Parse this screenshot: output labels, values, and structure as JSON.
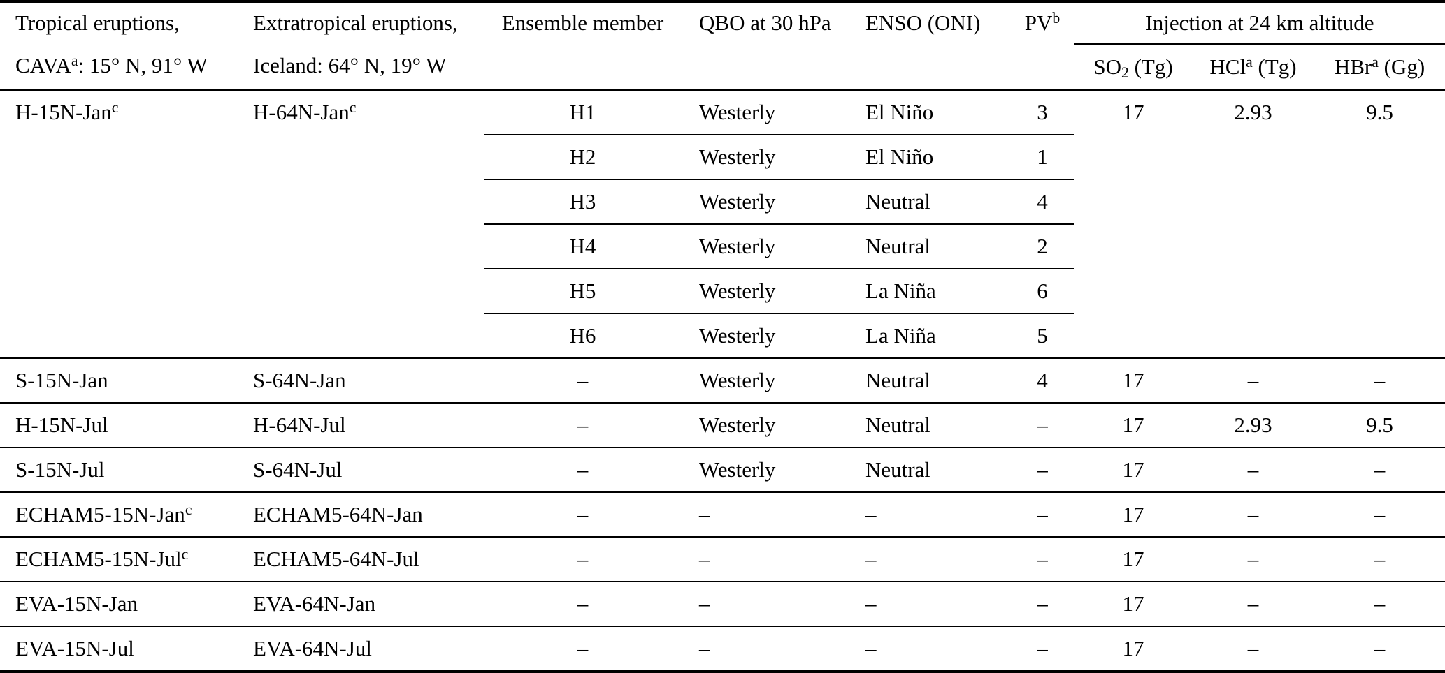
{
  "header": {
    "tropical_line1": "Tropical eruptions,",
    "tropical_line2_pre": "CAVA",
    "tropical_line2_sup": "a",
    "tropical_line2_post": ": 15° N, 91° W",
    "extratropical_line1": "Extratropical eruptions,",
    "extratropical_line2": "Iceland: 64° N, 19° W",
    "ensemble_member": "Ensemble member",
    "qbo": "QBO at 30 hPa",
    "enso": "ENSO (ONI)",
    "pv_pre": "PV",
    "pv_sup": "b",
    "injection_group": "Injection at 24 km altitude",
    "so2_pre": "SO",
    "so2_sub": "2",
    "so2_post": " (Tg)",
    "hcl_pre": "HCl",
    "hcl_sup": "a",
    "hcl_post": " (Tg)",
    "hbr_pre": "HBr",
    "hbr_sup": "a",
    "hbr_post": " (Gg)"
  },
  "group": {
    "tropical": "H-15N-Jan",
    "tropical_sup": "c",
    "extratropical": "H-64N-Jan",
    "extratropical_sup": "c",
    "so2": "17",
    "hcl": "2.93",
    "hbr": "9.5",
    "members": [
      {
        "member": "H1",
        "qbo": "Westerly",
        "enso": "El Niño",
        "pv": "3"
      },
      {
        "member": "H2",
        "qbo": "Westerly",
        "enso": "El Niño",
        "pv": "1"
      },
      {
        "member": "H3",
        "qbo": "Westerly",
        "enso": "Neutral",
        "pv": "4"
      },
      {
        "member": "H4",
        "qbo": "Westerly",
        "enso": "Neutral",
        "pv": "2"
      },
      {
        "member": "H5",
        "qbo": "Westerly",
        "enso": "La Niña",
        "pv": "6"
      },
      {
        "member": "H6",
        "qbo": "Westerly",
        "enso": "La Niña",
        "pv": "5"
      }
    ]
  },
  "rows": [
    {
      "tropical": "S-15N-Jan",
      "tropical_sup": "",
      "extratropical": "S-64N-Jan",
      "member": "–",
      "qbo": "Westerly",
      "enso": "Neutral",
      "pv": "4",
      "so2": "17",
      "hcl": "–",
      "hbr": "–"
    },
    {
      "tropical": "H-15N-Jul",
      "tropical_sup": "",
      "extratropical": "H-64N-Jul",
      "member": "–",
      "qbo": "Westerly",
      "enso": "Neutral",
      "pv": "–",
      "so2": "17",
      "hcl": "2.93",
      "hbr": "9.5"
    },
    {
      "tropical": "S-15N-Jul",
      "tropical_sup": "",
      "extratropical": "S-64N-Jul",
      "member": "–",
      "qbo": "Westerly",
      "enso": "Neutral",
      "pv": "–",
      "so2": "17",
      "hcl": "–",
      "hbr": "–"
    },
    {
      "tropical": "ECHAM5-15N-Jan",
      "tropical_sup": "c",
      "extratropical": "ECHAM5-64N-Jan",
      "member": "–",
      "qbo": "–",
      "enso": "–",
      "pv": "–",
      "so2": "17",
      "hcl": "–",
      "hbr": "–"
    },
    {
      "tropical": "ECHAM5-15N-Jul",
      "tropical_sup": "c",
      "extratropical": "ECHAM5-64N-Jul",
      "member": "–",
      "qbo": "–",
      "enso": "–",
      "pv": "–",
      "so2": "17",
      "hcl": "–",
      "hbr": "–"
    },
    {
      "tropical": "EVA-15N-Jan",
      "tropical_sup": "",
      "extratropical": "EVA-64N-Jan",
      "member": "–",
      "qbo": "–",
      "enso": "–",
      "pv": "–",
      "so2": "17",
      "hcl": "–",
      "hbr": "–"
    },
    {
      "tropical": "EVA-15N-Jul",
      "tropical_sup": "",
      "extratropical": "EVA-64N-Jul",
      "member": "–",
      "qbo": "–",
      "enso": "–",
      "pv": "–",
      "so2": "17",
      "hcl": "–",
      "hbr": "–"
    }
  ]
}
